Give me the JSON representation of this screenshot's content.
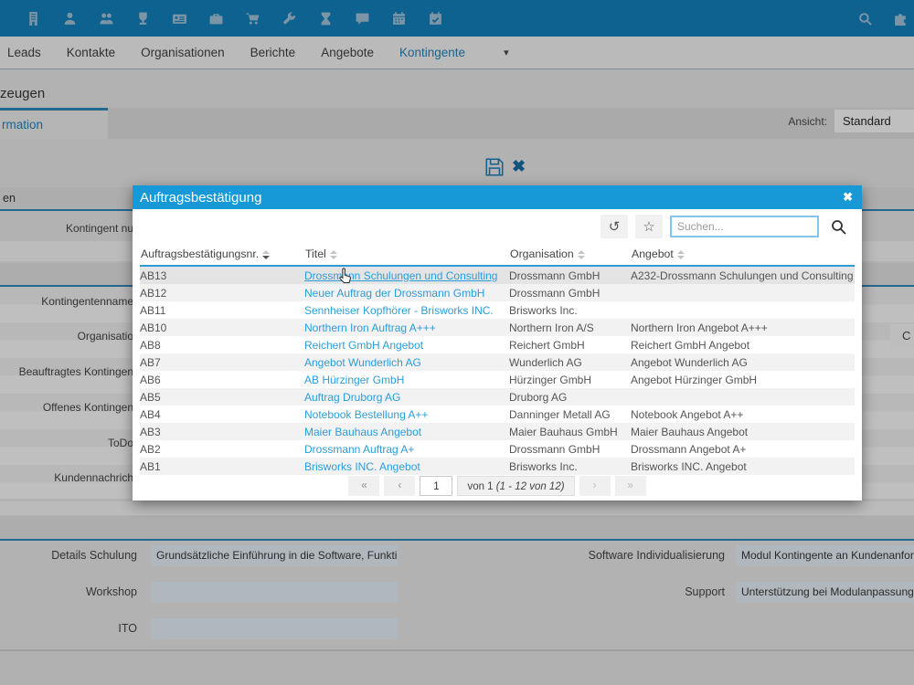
{
  "colors": {
    "topbar": "#0f7cb5",
    "modal_header": "#1699d6",
    "link": "#2b9dd8",
    "section_border": "#2e85b8",
    "nav_active": "#1d7fb5",
    "search_border": "#82c7e8"
  },
  "topbar": {
    "icons": [
      "building",
      "user",
      "users",
      "trophy",
      "id-card",
      "briefcase",
      "cart",
      "wrench",
      "hourglass",
      "chat",
      "calendar",
      "calendar-check"
    ],
    "right_icons": [
      "search",
      "puzzle"
    ]
  },
  "nav": {
    "items": [
      {
        "label": "Leads",
        "active": false
      },
      {
        "label": "Kontakte",
        "active": false
      },
      {
        "label": "Organisationen",
        "active": false
      },
      {
        "label": "Berichte",
        "active": false
      },
      {
        "label": "Angebote",
        "active": false
      },
      {
        "label": "Kontingente",
        "active": true
      }
    ],
    "caret": "▾"
  },
  "page": {
    "heading_partial": "zeugen",
    "tab_partial": "rmation",
    "ansicht_label": "Ansicht:",
    "ansicht_value": "Standard",
    "section1_partial": "en",
    "left_labels": [
      "Kontingent nu",
      "Kontingentenname",
      "Organisatio",
      "Beauftragtes Kontingen",
      "Offenes Kontingen",
      "ToDo",
      "Kundennachrich"
    ],
    "partial_button_text": "C",
    "bottom_left_fields": [
      {
        "label": "Details Schulung",
        "value": "Grundsätzliche Einführung in die Software, Funktionen der"
      },
      {
        "label": "Workshop",
        "value": ""
      },
      {
        "label": "ITO",
        "value": ""
      }
    ],
    "bottom_right_fields": [
      {
        "label": "Software Individualisierung",
        "value": "Modul Kontingente an Kundenanforderung"
      },
      {
        "label": "Support",
        "value": "Unterstützung bei Modulanpassungen, Imp"
      }
    ]
  },
  "modal": {
    "title": "Auftragsbestätigung",
    "close_glyph": "✖",
    "history_glyph": "↺",
    "star_glyph": "☆",
    "search_placeholder": "Suchen...",
    "columns": [
      "Auftragsbestätigungsnr.",
      "Titel",
      "Organisation",
      "Angebot"
    ],
    "sorted_column": 0,
    "rows": [
      {
        "nr": "AB13",
        "titel": "Drossmann Schulungen und Consulting",
        "organisation": "Drossmann GmbH",
        "angebot": "A232-Drossmann Schulungen und Consulting",
        "hovered": true
      },
      {
        "nr": "AB12",
        "titel": "Neuer Auftrag der Drossmann GmbH",
        "organisation": "Drossmann GmbH",
        "angebot": ""
      },
      {
        "nr": "AB11",
        "titel": "Sennheiser Kopfhörer - Brisworks INC.",
        "organisation": "Brisworks Inc.",
        "angebot": ""
      },
      {
        "nr": "AB10",
        "titel": "Northern Iron Auftrag A+++",
        "organisation": "Northern Iron A/S",
        "angebot": "Northern Iron Angebot A+++"
      },
      {
        "nr": "AB8",
        "titel": "Reichert GmbH Angebot",
        "organisation": "Reichert GmbH",
        "angebot": "Reichert GmbH Angebot"
      },
      {
        "nr": "AB7",
        "titel": "Angebot Wunderlich AG",
        "organisation": "Wunderlich AG",
        "angebot": "Angebot Wunderlich AG"
      },
      {
        "nr": "AB6",
        "titel": "AB Hürzinger GmbH",
        "organisation": "Hürzinger GmbH",
        "angebot": "Angebot Hürzinger GmbH"
      },
      {
        "nr": "AB5",
        "titel": "Auftrag Druborg AG",
        "organisation": "Druborg AG",
        "angebot": ""
      },
      {
        "nr": "AB4",
        "titel": "Notebook Bestellung A++",
        "organisation": "Danninger Metall AG",
        "angebot": "Notebook Angebot A++"
      },
      {
        "nr": "AB3",
        "titel": "Maier Bauhaus Angebot",
        "organisation": "Maier Bauhaus GmbH",
        "angebot": "Maier Bauhaus Angebot"
      },
      {
        "nr": "AB2",
        "titel": "Drossmann Auftrag A+",
        "organisation": "Drossmann GmbH",
        "angebot": "Drossmann Angebot A+"
      },
      {
        "nr": "AB1",
        "titel": "Brisworks INC. Angebot",
        "organisation": "Brisworks Inc.",
        "angebot": "Brisworks INC. Angebot"
      }
    ],
    "pagination": {
      "first": "«",
      "prev": "‹",
      "page": "1",
      "info": "von 1",
      "info_detail": "(1 - 12 von 12)",
      "next": "›",
      "last": "»"
    }
  }
}
